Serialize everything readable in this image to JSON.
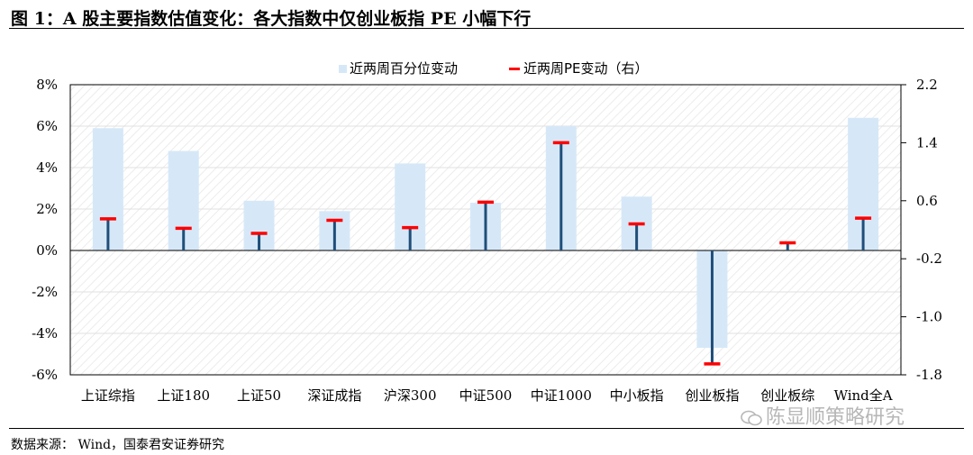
{
  "figure": {
    "title": "图 1：A 股主要指数估值变化：各大指数中仅创业板指 PE 小幅下行",
    "source": "数据来源：  Wind，国泰君安证券研究",
    "watermark": "陈显顺策略研究"
  },
  "colors": {
    "bar": "#d6e8f8",
    "pe_stem": "#1f4e79",
    "pe_cap": "#ff0000",
    "grid": "#e0e0e0",
    "hatch": "#ececec"
  },
  "chart_data": {
    "type": "bar",
    "categories": [
      "上证综指",
      "上证180",
      "上证50",
      "深证成指",
      "沪深300",
      "中证500",
      "中证1000",
      "中小板指",
      "创业板指",
      "创业板综",
      "Wind全A"
    ],
    "series": [
      {
        "name": "近两周百分位变动",
        "axis": "left",
        "unit": "%",
        "values": [
          5.9,
          4.8,
          2.4,
          1.9,
          4.2,
          2.3,
          6.0,
          2.6,
          -4.7,
          0.0,
          6.4
        ]
      },
      {
        "name": "近两周PE变动（右）",
        "axis": "right",
        "values": [
          0.35,
          0.22,
          0.15,
          0.33,
          0.23,
          0.58,
          1.4,
          0.28,
          -1.65,
          0.02,
          0.36
        ]
      }
    ],
    "y_left": {
      "min": -6,
      "max": 8,
      "step": 2,
      "ticks": [
        "8%",
        "6%",
        "4%",
        "2%",
        "0%",
        "-2%",
        "-4%",
        "-6%"
      ]
    },
    "y_right": {
      "min": -1.8,
      "max": 2.2,
      "ticks": [
        "2.2",
        "1.4",
        "0.6",
        "-0.2",
        "-1.0",
        "-1.8"
      ]
    },
    "legend_position": "top-center",
    "grid": true
  }
}
